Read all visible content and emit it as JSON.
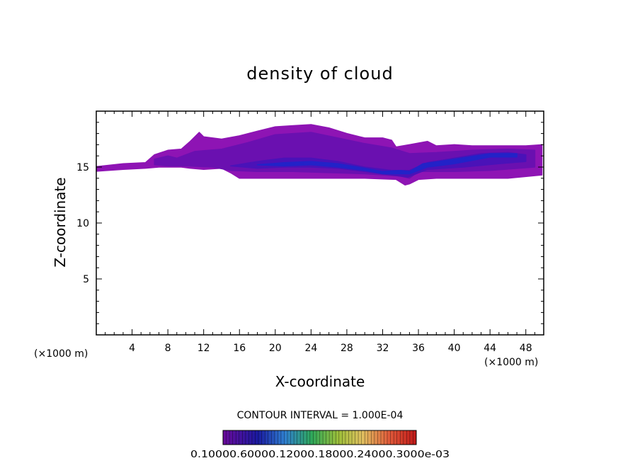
{
  "chart_data": {
    "type": "contour",
    "title": "density of cloud",
    "xlabel": "X-coordinate",
    "ylabel": "Z-coordinate",
    "x_unit": "(×1000 m)",
    "xlim": [
      0,
      50
    ],
    "ylim": [
      0,
      20
    ],
    "x_ticks": [
      4,
      8,
      12,
      16,
      20,
      24,
      28,
      32,
      36,
      40,
      44,
      48
    ],
    "y_ticks": [
      5,
      10,
      15
    ],
    "contour_interval_label": "CONTOUR INTERVAL = 1.000E-04",
    "colorbar_labels": "0.10000e-05 0.60000e-04 0.12000e-03 0.18000e-03 0.24000e-03 0.30000e-03",
    "colorbar_label_text": "0.10000.60000.12000.18000.24000.3000e-03",
    "colors": {
      "outer": "#8e14b4",
      "mid": "#6a10b0",
      "inner": "#4a12b8",
      "core": "#2222c8"
    },
    "regions": [
      {
        "level": "outer",
        "points": [
          [
            -0.5,
            15.0
          ],
          [
            3,
            15.3
          ],
          [
            5.5,
            15.4
          ],
          [
            6.5,
            16.1
          ],
          [
            8,
            16.5
          ],
          [
            9.5,
            16.6
          ],
          [
            10.5,
            17.3
          ],
          [
            11.5,
            18.1
          ],
          [
            12,
            17.7
          ],
          [
            14,
            17.5
          ],
          [
            16,
            17.8
          ],
          [
            18,
            18.2
          ],
          [
            20,
            18.6
          ],
          [
            22,
            18.7
          ],
          [
            24,
            18.8
          ],
          [
            26,
            18.5
          ],
          [
            28,
            18.0
          ],
          [
            30,
            17.6
          ],
          [
            32,
            17.6
          ],
          [
            33,
            17.4
          ],
          [
            33.5,
            16.8
          ],
          [
            35,
            17.0
          ],
          [
            37,
            17.3
          ],
          [
            38,
            16.9
          ],
          [
            40,
            17.0
          ],
          [
            42,
            16.9
          ],
          [
            45,
            16.9
          ],
          [
            48,
            16.9
          ],
          [
            49.8,
            17.0
          ],
          [
            49.8,
            14.3
          ],
          [
            46,
            14.0
          ],
          [
            42,
            14.0
          ],
          [
            38,
            14.0
          ],
          [
            36,
            13.9
          ],
          [
            35,
            13.5
          ],
          [
            34.5,
            13.4
          ],
          [
            33.5,
            13.9
          ],
          [
            30,
            14.0
          ],
          [
            26,
            14.0
          ],
          [
            22,
            14.0
          ],
          [
            18,
            14.0
          ],
          [
            16,
            14.0
          ],
          [
            15,
            14.5
          ],
          [
            14,
            14.9
          ],
          [
            12,
            14.8
          ],
          [
            10.5,
            14.9
          ],
          [
            9.5,
            15.0
          ],
          [
            8,
            15.0
          ],
          [
            7,
            15.0
          ],
          [
            5.5,
            14.9
          ],
          [
            3,
            14.8
          ],
          [
            -0.5,
            14.6
          ]
        ]
      },
      {
        "level": "mid",
        "points": [
          [
            6.5,
            15.7
          ],
          [
            8,
            16.0
          ],
          [
            9,
            15.8
          ],
          [
            11,
            16.4
          ],
          [
            14,
            16.6
          ],
          [
            17,
            17.2
          ],
          [
            20,
            17.9
          ],
          [
            24,
            18.1
          ],
          [
            27,
            17.6
          ],
          [
            30,
            17.1
          ],
          [
            33,
            16.7
          ],
          [
            35,
            16.2
          ],
          [
            38,
            16.3
          ],
          [
            42,
            16.5
          ],
          [
            46,
            16.6
          ],
          [
            49,
            16.5
          ],
          [
            49,
            15.0
          ],
          [
            44,
            14.7
          ],
          [
            40,
            14.6
          ],
          [
            36,
            14.6
          ],
          [
            35,
            14.0
          ],
          [
            34,
            14.2
          ],
          [
            30,
            14.4
          ],
          [
            26,
            14.5
          ],
          [
            22,
            14.6
          ],
          [
            18,
            14.6
          ],
          [
            15,
            14.7
          ],
          [
            13,
            15.0
          ],
          [
            10,
            15.1
          ],
          [
            8,
            15.1
          ],
          [
            6.5,
            15.2
          ]
        ]
      },
      {
        "level": "inner",
        "points": [
          [
            15,
            15.1
          ],
          [
            18,
            15.5
          ],
          [
            21,
            15.8
          ],
          [
            24,
            15.8
          ],
          [
            27,
            15.5
          ],
          [
            30,
            15.0
          ],
          [
            33,
            14.7
          ],
          [
            35,
            14.7
          ],
          [
            37,
            15.4
          ],
          [
            40,
            15.8
          ],
          [
            43,
            16.2
          ],
          [
            46,
            16.3
          ],
          [
            48,
            16.1
          ],
          [
            48,
            15.5
          ],
          [
            45,
            15.3
          ],
          [
            41,
            15.0
          ],
          [
            37,
            14.8
          ],
          [
            34.8,
            14.1
          ],
          [
            33,
            14.3
          ],
          [
            30,
            14.6
          ],
          [
            27,
            14.9
          ],
          [
            24,
            15.0
          ],
          [
            21,
            15.0
          ],
          [
            18,
            14.9
          ]
        ]
      },
      {
        "level": "core",
        "points": [
          [
            18,
            15.2
          ],
          [
            21,
            15.4
          ],
          [
            24,
            15.5
          ],
          [
            27,
            15.3
          ],
          [
            30,
            14.9
          ],
          [
            32,
            14.6
          ],
          [
            34,
            14.7
          ],
          [
            35,
            14.6
          ],
          [
            36.5,
            15.3
          ],
          [
            40,
            15.7
          ],
          [
            44,
            16.2
          ],
          [
            47,
            16.2
          ],
          [
            47,
            15.9
          ],
          [
            44,
            15.9
          ],
          [
            40,
            15.3
          ],
          [
            37,
            15.0
          ],
          [
            35,
            14.4
          ],
          [
            32,
            14.4
          ],
          [
            30,
            14.7
          ],
          [
            27,
            15.0
          ],
          [
            24,
            15.2
          ],
          [
            21,
            15.1
          ]
        ]
      }
    ]
  }
}
